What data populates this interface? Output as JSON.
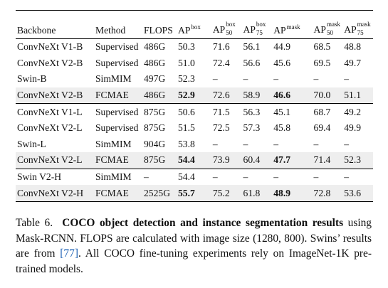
{
  "table": {
    "headers": {
      "backbone": "Backbone",
      "method": "Method",
      "flops": "FLOPS",
      "apbox": {
        "main": "AP",
        "sup": "box"
      },
      "apbox50": {
        "main": "AP",
        "sup": "box",
        "sub": "50"
      },
      "apbox75": {
        "main": "AP",
        "sup": "box",
        "sub": "75"
      },
      "apmask": {
        "main": "AP",
        "sup": "mask"
      },
      "apmask50": {
        "main": "AP",
        "sup": "mask",
        "sub": "50"
      },
      "apmask75": {
        "main": "AP",
        "sup": "mask",
        "sub": "75"
      }
    },
    "rows": [
      {
        "backbone": "ConvNeXt V1-B",
        "method": "Supervised",
        "flops": "486G",
        "apbox": "50.3",
        "apbox50": "71.6",
        "apbox75": "56.1",
        "apmask": "44.9",
        "apmask50": "68.5",
        "apmask75": "48.8"
      },
      {
        "backbone": "ConvNeXt V2-B",
        "method": "Supervised",
        "flops": "486G",
        "apbox": "51.0",
        "apbox50": "72.4",
        "apbox75": "56.6",
        "apmask": "45.6",
        "apmask50": "69.5",
        "apmask75": "49.7"
      },
      {
        "backbone": "Swin-B",
        "method": "SimMIM",
        "flops": "497G",
        "apbox": "52.3",
        "apbox50": "–",
        "apbox75": "–",
        "apmask": "–",
        "apmask50": "–",
        "apmask75": "–"
      },
      {
        "backbone": "ConvNeXt V2-B",
        "method": "FCMAE",
        "flops": "486G",
        "apbox": "52.9",
        "apbox50": "72.6",
        "apbox75": "58.9",
        "apmask": "46.6",
        "apmask50": "70.0",
        "apmask75": "51.1"
      },
      {
        "backbone": "ConvNeXt V1-L",
        "method": "Supervised",
        "flops": "875G",
        "apbox": "50.6",
        "apbox50": "71.5",
        "apbox75": "56.3",
        "apmask": "45.1",
        "apmask50": "68.7",
        "apmask75": "49.2"
      },
      {
        "backbone": "ConvNeXt V2-L",
        "method": "Supervised",
        "flops": "875G",
        "apbox": "51.5",
        "apbox50": "72.5",
        "apbox75": "57.3",
        "apmask": "45.8",
        "apmask50": "69.4",
        "apmask75": "49.9"
      },
      {
        "backbone": "Swin-L",
        "method": "SimMIM",
        "flops": "904G",
        "apbox": "53.8",
        "apbox50": "–",
        "apbox75": "–",
        "apmask": "–",
        "apmask50": "–",
        "apmask75": "–"
      },
      {
        "backbone": "ConvNeXt V2-L",
        "method": "FCMAE",
        "flops": "875G",
        "apbox": "54.4",
        "apbox50": "73.9",
        "apbox75": "60.4",
        "apmask": "47.7",
        "apmask50": "71.4",
        "apmask75": "52.3"
      },
      {
        "backbone": "Swin V2-H",
        "method": "SimMIM",
        "flops": "–",
        "apbox": "54.4",
        "apbox50": "–",
        "apbox75": "–",
        "apmask": "–",
        "apmask50": "–",
        "apmask75": "–"
      },
      {
        "backbone": "ConvNeXt V2-H",
        "method": "FCMAE",
        "flops": "2525G",
        "apbox": "55.7",
        "apbox50": "75.2",
        "apbox75": "61.8",
        "apmask": "48.9",
        "apmask50": "72.8",
        "apmask75": "53.6"
      }
    ]
  },
  "caption": {
    "label": "Table 6.",
    "title": "COCO object detection and instance segmentation results",
    "text1": " using Mask-RCNN. FLOPS are calculated with image size (1280, 800). Swins’ results are from ",
    "ref": "[77]",
    "text2": ". All COCO fine-tuning experiments rely on ImageNet-1K pre-trained models."
  }
}
